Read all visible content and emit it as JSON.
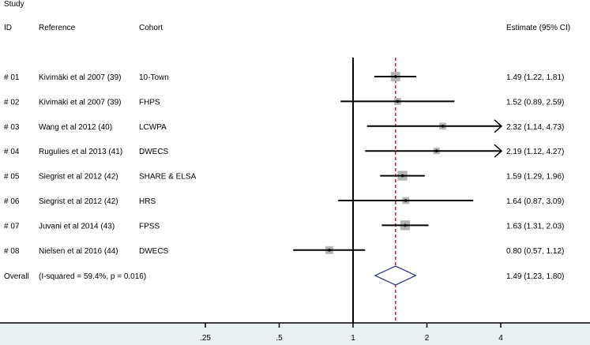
{
  "chart_data": {
    "type": "forest",
    "title": "",
    "header": {
      "study": "Study",
      "id": "ID",
      "reference": "Reference",
      "cohort": "Cohort",
      "estimate": "Estimate (95% CI)"
    },
    "xscale": "log",
    "xticks": [
      0.25,
      0.5,
      1,
      2,
      4
    ],
    "xtick_labels": [
      ".25",
      ".5",
      "1",
      "2",
      "4"
    ],
    "xlim": [
      0.2,
      6.5
    ],
    "null_line": 1,
    "pooled_line": 1.49,
    "rows": [
      {
        "id": "# 01",
        "reference": "Kivimäki et al 2007 (39)",
        "cohort": "10-Town",
        "est": 1.49,
        "lo": 1.22,
        "hi": 1.81,
        "label": "1.49 (1.22, 1.81)",
        "weight": 13
      },
      {
        "id": "# 02",
        "reference": "Kivimäki et al 2007 (39)",
        "cohort": "FHPS",
        "est": 1.52,
        "lo": 0.89,
        "hi": 2.59,
        "label": "1.52 (0.89, 2.59)",
        "weight": 7
      },
      {
        "id": "# 03",
        "reference": "Wang et al 2012 (40)",
        "cohort": "LCWPA",
        "est": 2.32,
        "lo": 1.14,
        "hi": 4.73,
        "label": "2.32 (1.14, 4.73)",
        "weight": 7
      },
      {
        "id": "# 04",
        "reference": "Rugulies et al 2013 (41)",
        "cohort": "DWECS",
        "est": 2.19,
        "lo": 1.12,
        "hi": 4.27,
        "label": "2.19 (1.12, 4.27)",
        "weight": 6
      },
      {
        "id": "# 05",
        "reference": "Siegrist et al 2012 (42)",
        "cohort": "SHARE & ELSA",
        "est": 1.59,
        "lo": 1.29,
        "hi": 1.96,
        "label": "1.59 (1.29, 1.96)",
        "weight": 14
      },
      {
        "id": "# 06",
        "reference": "Siegrist et al 2012 (42)",
        "cohort": "HRS",
        "est": 1.64,
        "lo": 0.87,
        "hi": 3.09,
        "label": "1.64 (0.87, 3.09)",
        "weight": 7
      },
      {
        "id": "# 07",
        "reference": "Juvani et al 2014 (43)",
        "cohort": "FPSS",
        "est": 1.63,
        "lo": 1.31,
        "hi": 2.03,
        "label": "1.63 (1.31, 2.03)",
        "weight": 14
      },
      {
        "id": "# 08",
        "reference": "Nielsen et al 2016 (44)",
        "cohort": "DWECS",
        "est": 0.8,
        "lo": 0.57,
        "hi": 1.12,
        "label": "0.80 (0.57, 1.12)",
        "weight": 9
      }
    ],
    "overall": {
      "label": "Overall",
      "heterogeneity": "(I-squared = 59.4%, p = 0.016)",
      "est": 1.49,
      "lo": 1.23,
      "hi": 1.8,
      "ci_label": "1.49 (1.23, 1.80)"
    },
    "colors": {
      "square": "#b4b4b4",
      "pooled_line": "#993333",
      "diamond": "#1a237e",
      "axis_bg": "#e8f0f2"
    }
  }
}
